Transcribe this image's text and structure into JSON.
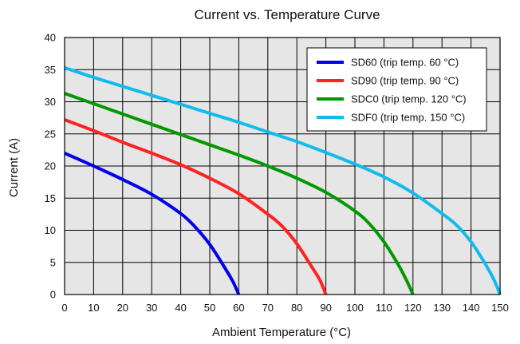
{
  "chart_data": {
    "type": "line",
    "title": "Current vs. Temperature Curve",
    "xlabel": "Ambient Temperature (°C)",
    "ylabel": "Current (A)",
    "xlim": [
      0,
      150
    ],
    "ylim": [
      0,
      40
    ],
    "xticks": [
      "0",
      "10",
      "20",
      "30",
      "40",
      "50",
      "60",
      "70",
      "80",
      "90",
      "100",
      "110",
      "120",
      "130",
      "140",
      "150"
    ],
    "yticks": [
      "0",
      "5",
      "10",
      "15",
      "20",
      "25",
      "30",
      "35",
      "40"
    ],
    "grid": true,
    "legend": "top-right",
    "plot_background": "#e6e6e6",
    "series": [
      {
        "name": "SD60 (trip temp. 60 °C)",
        "color": "#0000ee",
        "x": [
          0,
          10,
          20,
          30,
          40,
          45,
          50,
          55,
          58,
          60
        ],
        "y": [
          22,
          20,
          17.9,
          15.6,
          12.6,
          10.5,
          7.8,
          4.3,
          2.0,
          0
        ]
      },
      {
        "name": "SD90 (trip temp. 90 °C)",
        "color": "#ff2222",
        "x": [
          0,
          10,
          20,
          30,
          40,
          50,
          60,
          70,
          75,
          80,
          85,
          88,
          90
        ],
        "y": [
          27.2,
          25.5,
          23.7,
          22.0,
          20.2,
          18.1,
          15.7,
          12.5,
          10.6,
          7.9,
          4.4,
          2.2,
          0
        ]
      },
      {
        "name": "SDC0 (trip temp. 120 °C)",
        "color": "#009900",
        "x": [
          0,
          10,
          20,
          30,
          40,
          50,
          60,
          70,
          80,
          90,
          100,
          105,
          110,
          115,
          118,
          120
        ],
        "y": [
          31.3,
          29.7,
          28.1,
          26.5,
          24.9,
          23.3,
          21.7,
          20.0,
          18.1,
          15.9,
          13.0,
          11.0,
          8.2,
          4.6,
          2.0,
          0
        ]
      },
      {
        "name": "SDF0 (trip temp. 150 °C)",
        "color": "#11bbee",
        "x": [
          0,
          10,
          20,
          30,
          40,
          50,
          60,
          70,
          80,
          90,
          100,
          110,
          120,
          130,
          135,
          140,
          145,
          148,
          150
        ],
        "y": [
          35.3,
          33.8,
          32.4,
          31.0,
          29.6,
          28.2,
          26.8,
          25.3,
          23.8,
          22.1,
          20.3,
          18.3,
          15.8,
          12.6,
          10.8,
          8.2,
          4.7,
          2.2,
          0
        ]
      }
    ]
  }
}
